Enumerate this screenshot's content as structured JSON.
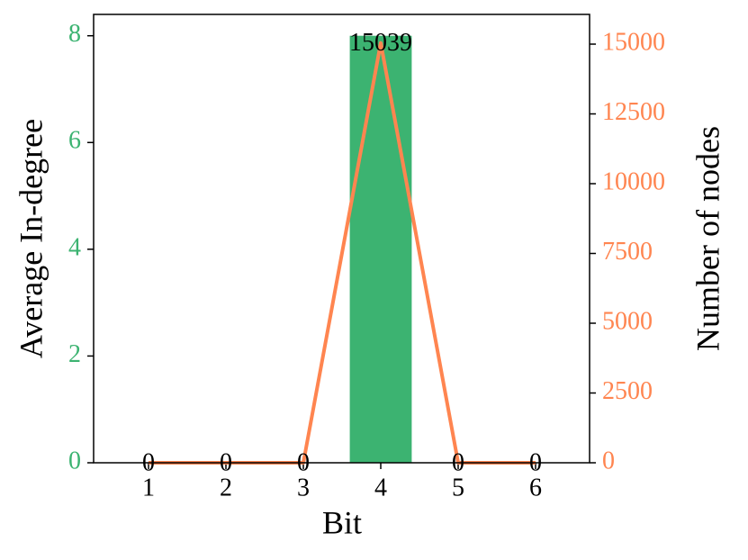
{
  "chart_data": {
    "type": "bar",
    "xlabel": "Bit",
    "ylabel": "Average In-degree",
    "y2label": "Number of nodes",
    "categories": [
      "1",
      "2",
      "3",
      "4",
      "5",
      "6"
    ],
    "series": [
      {
        "type": "bar",
        "color": "#3cb371",
        "values": [
          0,
          0,
          0,
          8,
          0,
          0
        ]
      },
      {
        "type": "line",
        "axis": "y2",
        "color": "#ff8550",
        "values": [
          0,
          0,
          0,
          15039,
          0,
          0
        ]
      }
    ],
    "ylim": [
      0,
      8.4
    ],
    "yticks": [
      0,
      2,
      4,
      6,
      8
    ],
    "y2lim": [
      0,
      16065
    ],
    "y2ticks": [
      0,
      2500,
      5000,
      7500,
      10000,
      12500,
      15000
    ]
  }
}
